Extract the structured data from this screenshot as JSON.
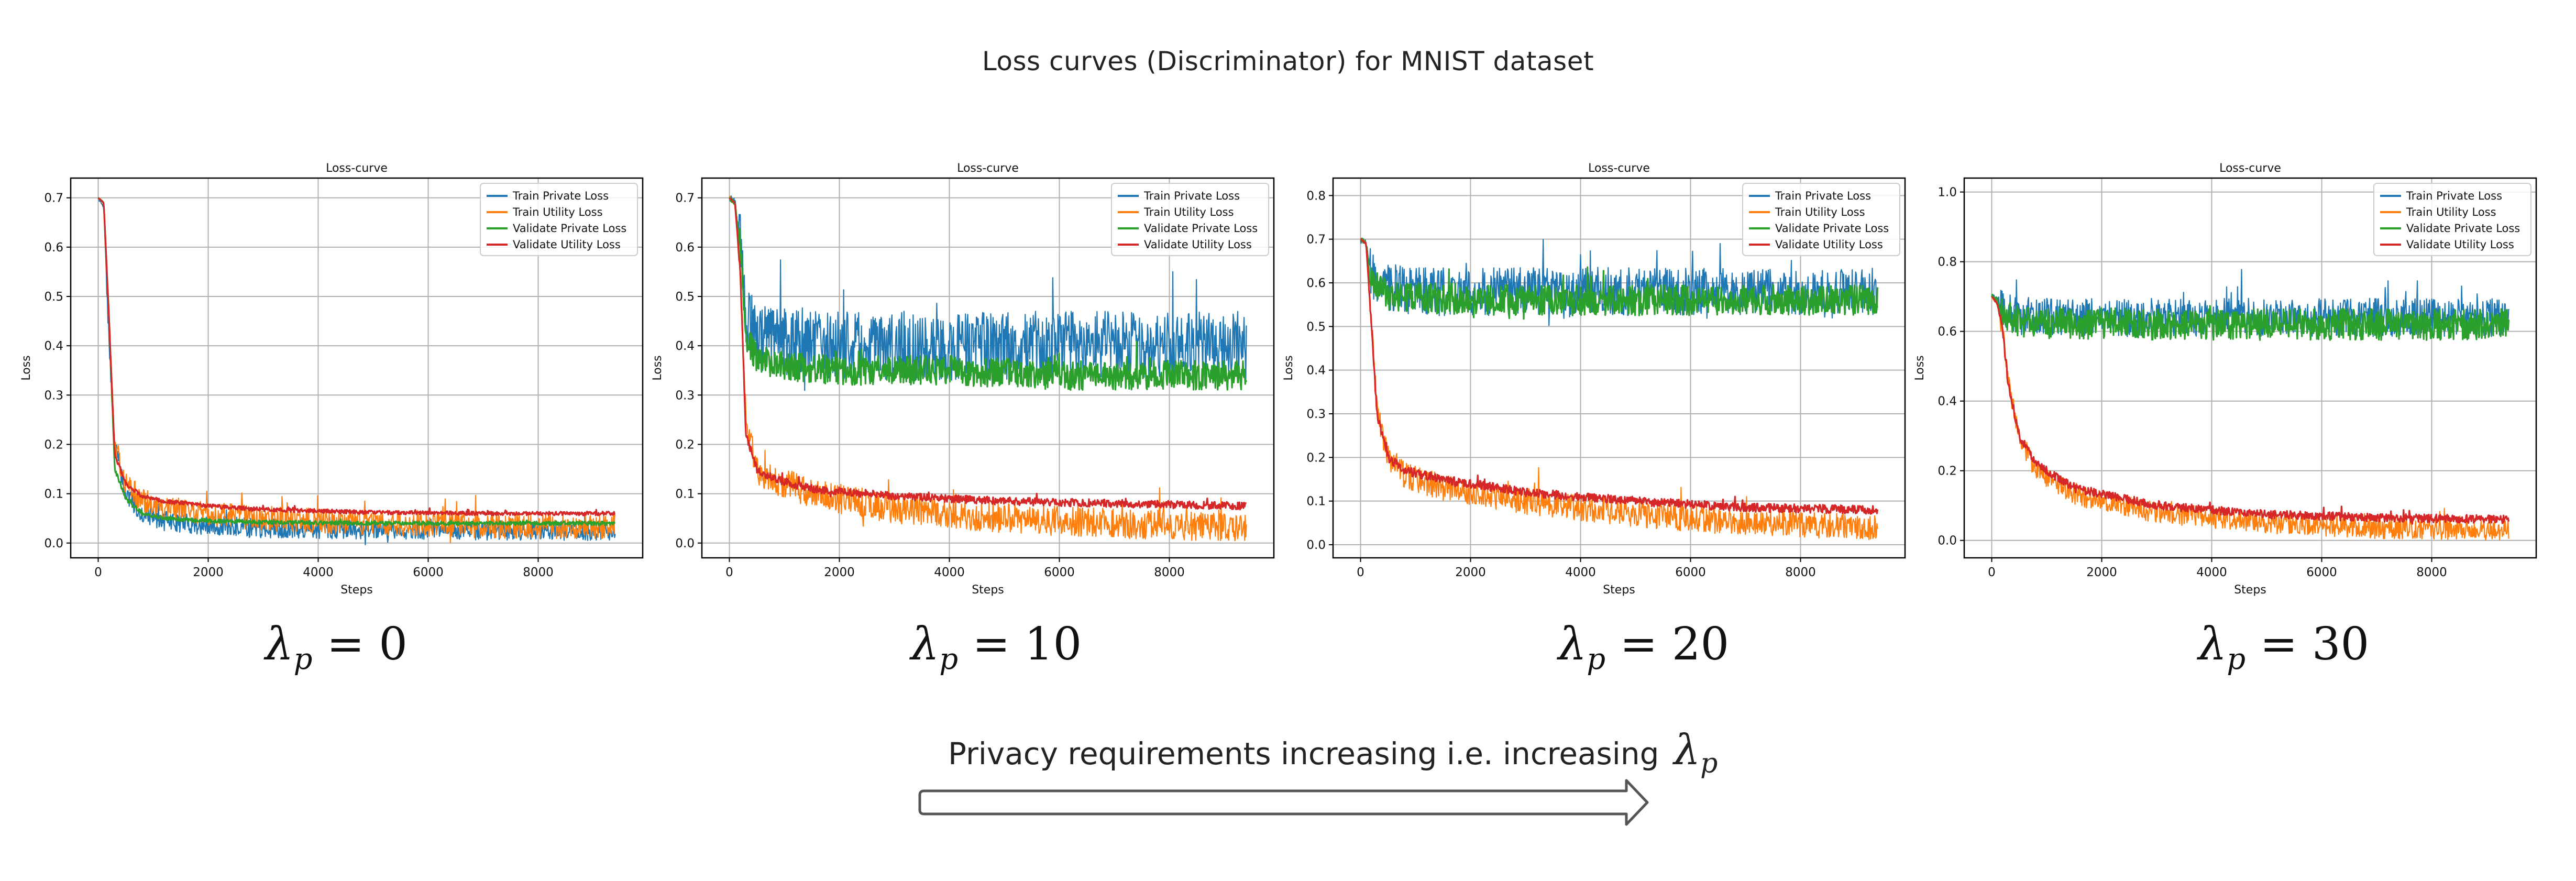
{
  "title": "Loss curves (Discriminator) for MNIST dataset",
  "colors": {
    "train_private": "#1f77b4",
    "train_utility": "#ff7f0e",
    "validate_private": "#2ca02c",
    "validate_utility": "#d62728"
  },
  "chart_data": [
    {
      "type": "line",
      "title": "Loss-curve",
      "xlabel": "Steps",
      "ylabel": "Loss",
      "xlim": [
        -500,
        9900
      ],
      "ylim": [
        -0.03,
        0.74
      ],
      "xticks": [
        0,
        2000,
        4000,
        6000,
        8000
      ],
      "yticks": [
        0.0,
        0.1,
        0.2,
        0.3,
        0.4,
        0.5,
        0.6,
        0.7
      ],
      "ytick_labels": [
        "0.0",
        "0.1",
        "0.2",
        "0.3",
        "0.4",
        "0.5",
        "0.6",
        "0.7"
      ],
      "grid": true,
      "legend_position": "top-right",
      "lambda_value": "0",
      "series": [
        {
          "name": "Train Private Loss",
          "x": [
            0,
            100,
            200,
            300,
            500,
            800,
            1200,
            2000,
            3000,
            5000,
            7000,
            9400
          ],
          "values": [
            0.7,
            0.68,
            0.4,
            0.2,
            0.1,
            0.06,
            0.045,
            0.035,
            0.03,
            0.028,
            0.026,
            0.025
          ],
          "noise": 0.02
        },
        {
          "name": "Train Utility Loss",
          "x": [
            0,
            100,
            200,
            300,
            500,
            800,
            1200,
            2000,
            3000,
            5000,
            7000,
            9400
          ],
          "values": [
            0.7,
            0.69,
            0.45,
            0.2,
            0.12,
            0.085,
            0.07,
            0.06,
            0.05,
            0.04,
            0.035,
            0.032
          ],
          "noise": 0.025
        },
        {
          "name": "Validate Private Loss",
          "x": [
            0,
            100,
            200,
            300,
            500,
            800,
            1200,
            2000,
            3000,
            5000,
            7000,
            9400
          ],
          "values": [
            0.7,
            0.69,
            0.45,
            0.15,
            0.09,
            0.06,
            0.05,
            0.045,
            0.042,
            0.04,
            0.04,
            0.04
          ],
          "noise": 0.004
        },
        {
          "name": "Validate Utility Loss",
          "x": [
            0,
            100,
            200,
            300,
            500,
            800,
            1200,
            2000,
            3000,
            5000,
            7000,
            9400
          ],
          "values": [
            0.7,
            0.69,
            0.45,
            0.18,
            0.12,
            0.095,
            0.085,
            0.075,
            0.068,
            0.062,
            0.06,
            0.06
          ],
          "noise": 0.004
        }
      ]
    },
    {
      "type": "line",
      "title": "Loss-curve",
      "xlabel": "Steps",
      "ylabel": "Loss",
      "xlim": [
        -500,
        9900
      ],
      "ylim": [
        -0.03,
        0.74
      ],
      "xticks": [
        0,
        2000,
        4000,
        6000,
        8000
      ],
      "yticks": [
        0.0,
        0.1,
        0.2,
        0.3,
        0.4,
        0.5,
        0.6,
        0.7
      ],
      "ytick_labels": [
        "0.0",
        "0.1",
        "0.2",
        "0.3",
        "0.4",
        "0.5",
        "0.6",
        "0.7"
      ],
      "grid": true,
      "legend_position": "top-right",
      "lambda_value": "10",
      "series": [
        {
          "name": "Train Private Loss",
          "x": [
            0,
            100,
            200,
            300,
            500,
            1000,
            2000,
            4000,
            6000,
            8000,
            9400
          ],
          "values": [
            0.7,
            0.69,
            0.6,
            0.45,
            0.42,
            0.41,
            0.4,
            0.4,
            0.4,
            0.4,
            0.4
          ],
          "noise": 0.07
        },
        {
          "name": "Train Utility Loss",
          "x": [
            0,
            100,
            200,
            300,
            500,
            800,
            1500,
            3000,
            5000,
            7000,
            9400
          ],
          "values": [
            0.7,
            0.69,
            0.55,
            0.25,
            0.15,
            0.13,
            0.1,
            0.07,
            0.05,
            0.04,
            0.03
          ],
          "noise": 0.03
        },
        {
          "name": "Validate Private Loss",
          "x": [
            0,
            100,
            200,
            300,
            500,
            1000,
            2000,
            4000,
            6000,
            8000,
            9400
          ],
          "values": [
            0.7,
            0.69,
            0.6,
            0.42,
            0.37,
            0.36,
            0.35,
            0.35,
            0.34,
            0.34,
            0.34
          ],
          "noise": 0.03
        },
        {
          "name": "Validate Utility Loss",
          "x": [
            0,
            100,
            200,
            300,
            500,
            800,
            1500,
            3000,
            5000,
            7000,
            9400
          ],
          "values": [
            0.7,
            0.69,
            0.55,
            0.22,
            0.15,
            0.13,
            0.11,
            0.095,
            0.085,
            0.08,
            0.075
          ],
          "noise": 0.008
        }
      ]
    },
    {
      "type": "line",
      "title": "Loss-curve",
      "xlabel": "Steps",
      "ylabel": "Loss",
      "xlim": [
        -500,
        9900
      ],
      "ylim": [
        -0.03,
        0.84
      ],
      "xticks": [
        0,
        2000,
        4000,
        6000,
        8000
      ],
      "yticks": [
        0.0,
        0.1,
        0.2,
        0.3,
        0.4,
        0.5,
        0.6,
        0.7,
        0.8
      ],
      "ytick_labels": [
        "0.0",
        "0.1",
        "0.2",
        "0.3",
        "0.4",
        "0.5",
        "0.6",
        "0.7",
        "0.8"
      ],
      "grid": true,
      "legend_position": "top-right",
      "lambda_value": "20",
      "series": [
        {
          "name": "Train Private Loss",
          "x": [
            0,
            100,
            200,
            500,
            1000,
            3000,
            6000,
            9400
          ],
          "values": [
            0.7,
            0.69,
            0.62,
            0.59,
            0.58,
            0.58,
            0.58,
            0.58
          ],
          "noise": 0.055
        },
        {
          "name": "Train Utility Loss",
          "x": [
            0,
            100,
            200,
            300,
            500,
            800,
            1500,
            3000,
            5000,
            7000,
            9400
          ],
          "values": [
            0.7,
            0.69,
            0.5,
            0.3,
            0.2,
            0.16,
            0.13,
            0.1,
            0.07,
            0.05,
            0.04
          ],
          "noise": 0.03
        },
        {
          "name": "Validate Private Loss",
          "x": [
            0,
            100,
            200,
            500,
            1000,
            3000,
            6000,
            9400
          ],
          "values": [
            0.7,
            0.69,
            0.6,
            0.57,
            0.565,
            0.56,
            0.56,
            0.56
          ],
          "noise": 0.035
        },
        {
          "name": "Validate Utility Loss",
          "x": [
            0,
            100,
            200,
            300,
            500,
            800,
            1500,
            3000,
            5000,
            7000,
            9400
          ],
          "values": [
            0.7,
            0.69,
            0.5,
            0.3,
            0.2,
            0.17,
            0.15,
            0.12,
            0.1,
            0.085,
            0.08
          ],
          "noise": 0.01
        }
      ]
    },
    {
      "type": "line",
      "title": "Loss-curve",
      "xlabel": "Steps",
      "ylabel": "Loss",
      "xlim": [
        -500,
        9900
      ],
      "ylim": [
        -0.05,
        1.04
      ],
      "xticks": [
        0,
        2000,
        4000,
        6000,
        8000
      ],
      "yticks": [
        0.0,
        0.2,
        0.4,
        0.6,
        0.8,
        1.0
      ],
      "ytick_labels": [
        "0.0",
        "0.2",
        "0.4",
        "0.6",
        "0.8",
        "1.0"
      ],
      "grid": true,
      "legend_position": "top-right",
      "lambda_value": "30",
      "series": [
        {
          "name": "Train Private Loss",
          "x": [
            0,
            100,
            200,
            500,
            1000,
            3000,
            6000,
            9400
          ],
          "values": [
            0.7,
            0.69,
            0.66,
            0.645,
            0.64,
            0.64,
            0.64,
            0.64
          ],
          "noise": 0.055
        },
        {
          "name": "Train Utility Loss",
          "x": [
            0,
            100,
            200,
            300,
            500,
            800,
            1500,
            3000,
            5000,
            7000,
            9400
          ],
          "values": [
            0.7,
            0.68,
            0.6,
            0.45,
            0.3,
            0.2,
            0.13,
            0.08,
            0.05,
            0.035,
            0.03
          ],
          "noise": 0.03
        },
        {
          "name": "Validate Private Loss",
          "x": [
            0,
            100,
            200,
            500,
            1000,
            3000,
            6000,
            9400
          ],
          "values": [
            0.7,
            0.69,
            0.65,
            0.63,
            0.625,
            0.62,
            0.62,
            0.62
          ],
          "noise": 0.045
        },
        {
          "name": "Validate Utility Loss",
          "x": [
            0,
            100,
            200,
            300,
            500,
            800,
            1500,
            3000,
            5000,
            7000,
            9400
          ],
          "values": [
            0.7,
            0.68,
            0.6,
            0.45,
            0.3,
            0.22,
            0.15,
            0.1,
            0.075,
            0.065,
            0.06
          ],
          "noise": 0.012
        }
      ]
    }
  ],
  "lambda_label": {
    "symbol": "λ",
    "subscript": "p",
    "equals": "="
  },
  "caption": {
    "text": "Privacy requirements increasing i.e. increasing"
  }
}
